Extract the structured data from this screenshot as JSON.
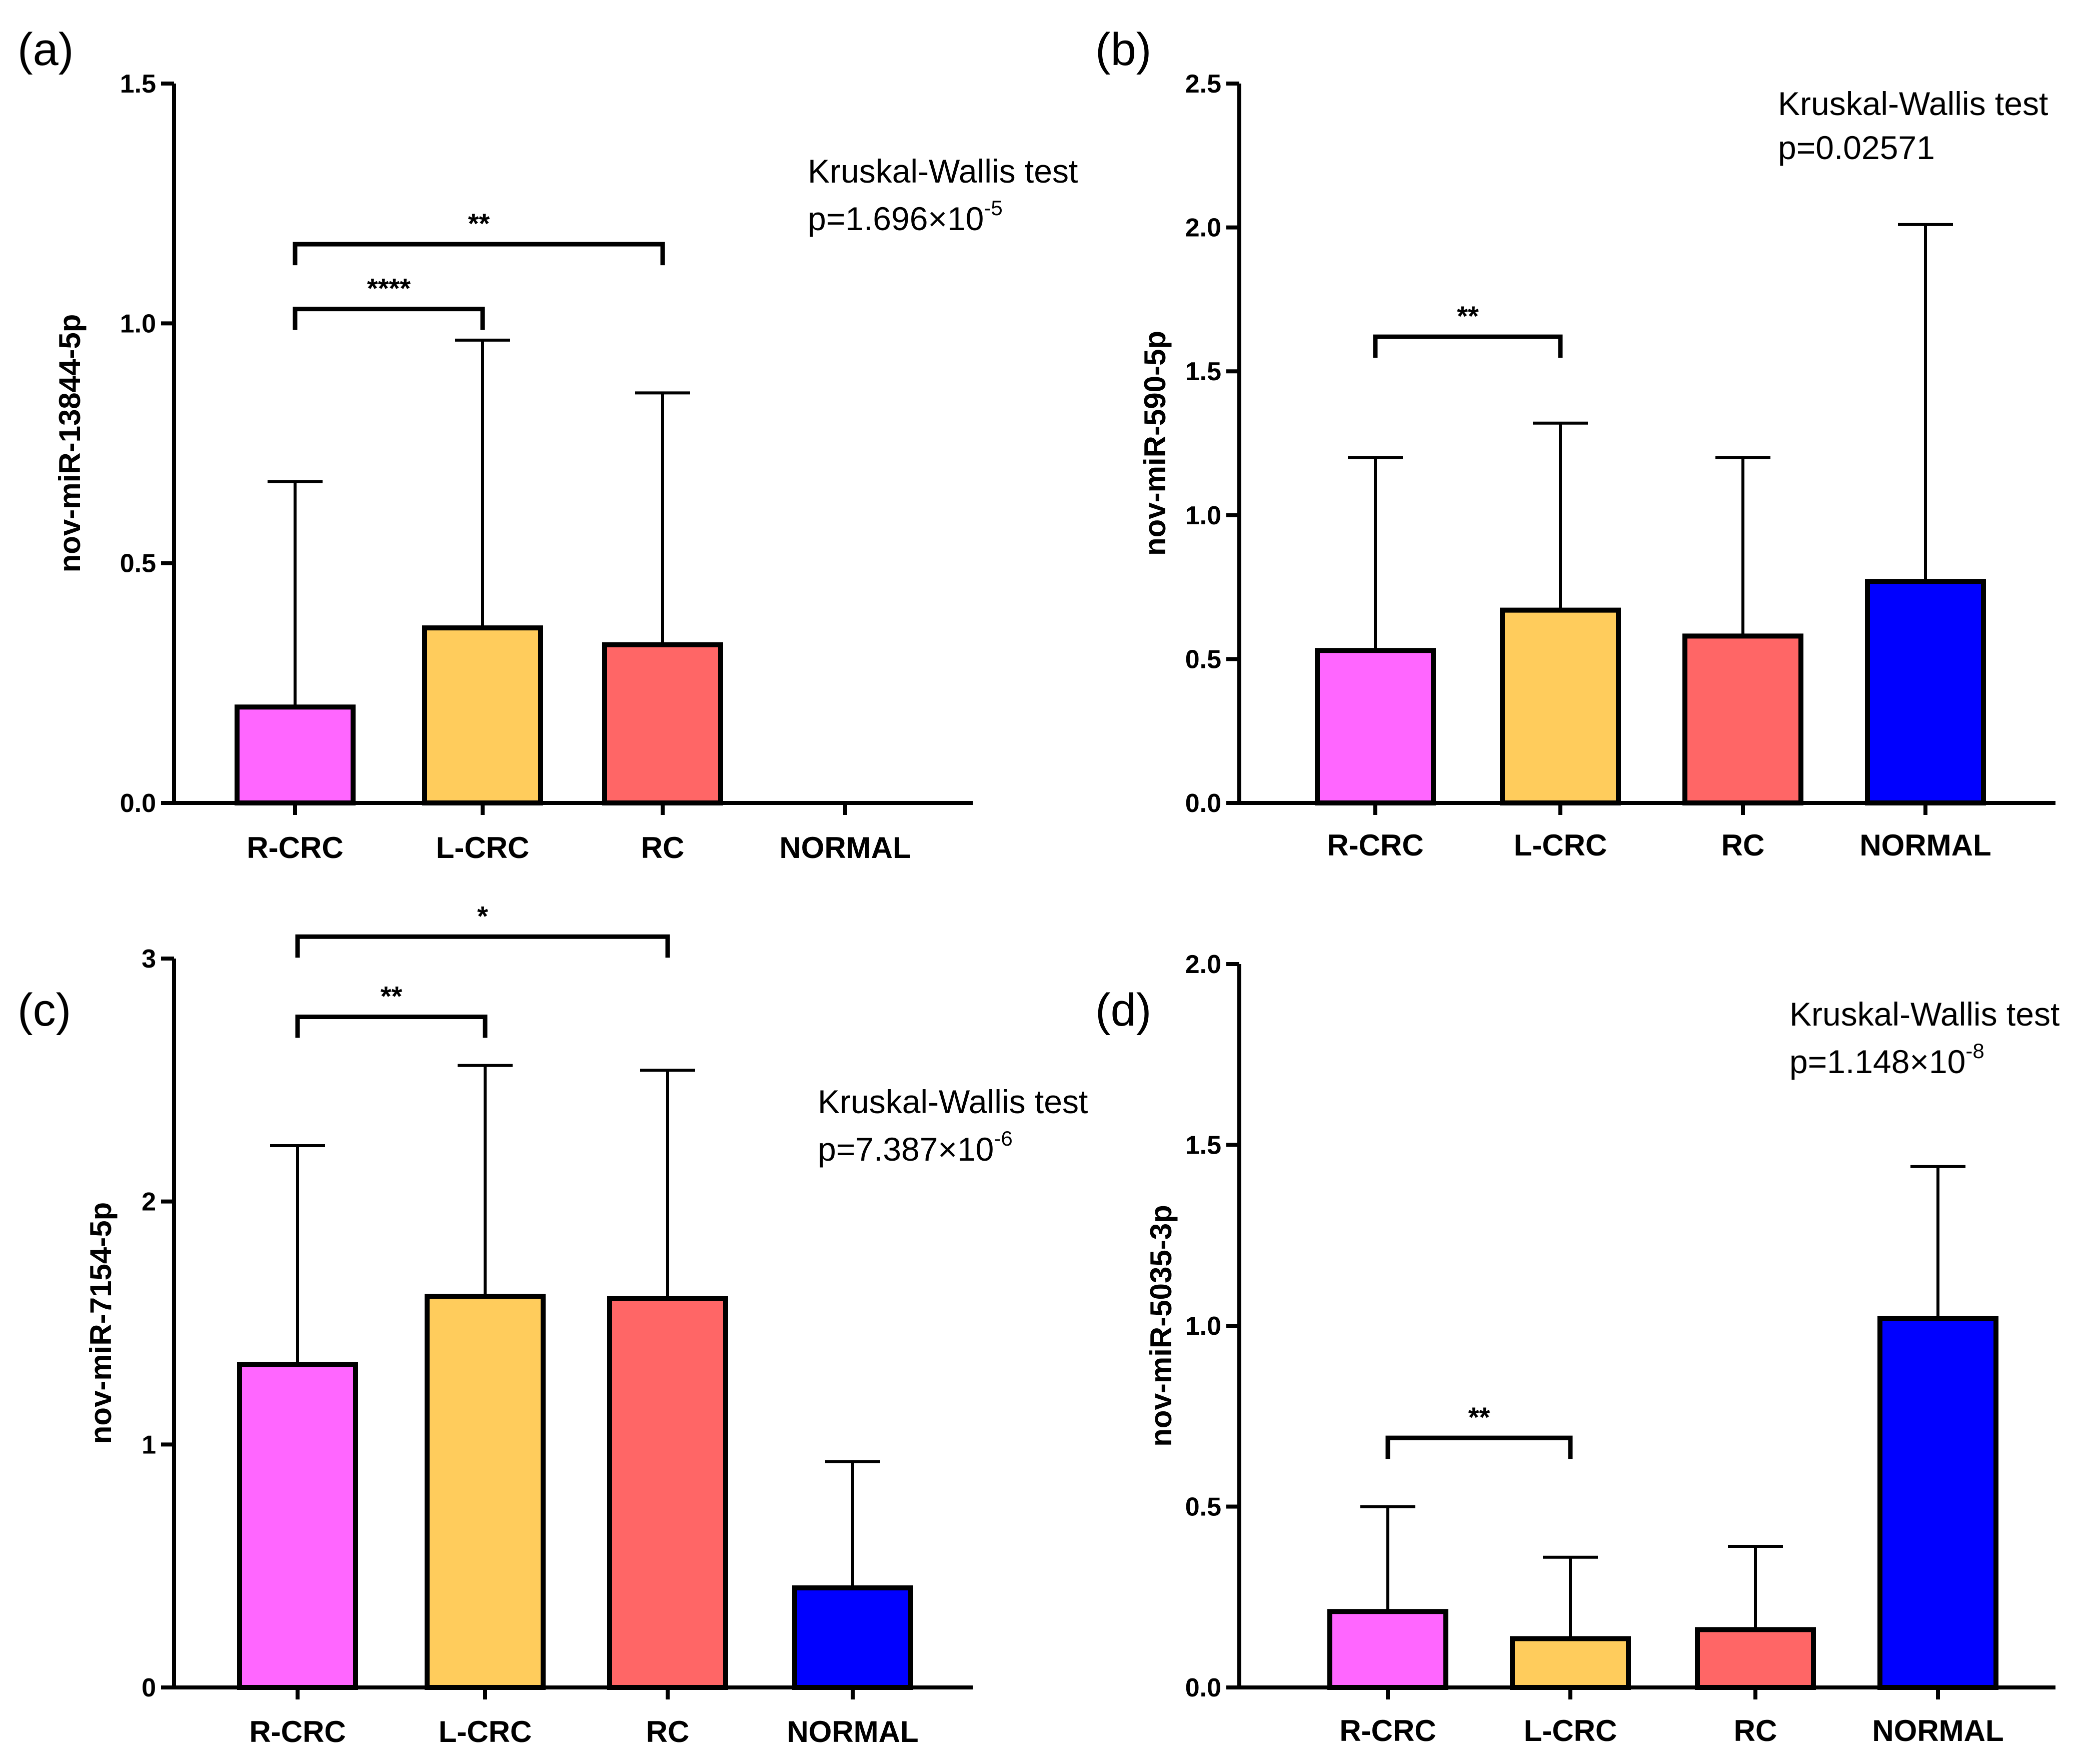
{
  "colors": {
    "R-CRC": "#ff66ff",
    "L-CRC": "#ffcc5c",
    "RC": "#ff6666",
    "NORMAL": "#0000ff"
  },
  "chart_data": [
    {
      "type": "bar",
      "panel": "(a)",
      "ylabel": "nov-miR-13844-5p",
      "categories": [
        "R-CRC",
        "L-CRC",
        "RC",
        "NORMAL"
      ],
      "values": [
        0.2,
        0.365,
        0.33,
        0.0
      ],
      "errors_upper": [
        0.67,
        0.965,
        0.855,
        null
      ],
      "ylim": [
        0,
        1.5
      ],
      "yticks": [
        0,
        0.5,
        1.0,
        1.5
      ],
      "ytick_labels": [
        "0.0",
        "0.5",
        "1.0",
        "1.5"
      ],
      "test_name": "Kruskal-Wallis test",
      "p_base": "p=1.696×10",
      "p_exp": "-5",
      "brackets": [
        {
          "from": 0,
          "to": 1,
          "label": "****",
          "y": 1.03
        },
        {
          "from": 0,
          "to": 2,
          "label": "**",
          "y": 1.165
        }
      ]
    },
    {
      "type": "bar",
      "panel": "(b)",
      "ylabel": "nov-miR-590-5p",
      "categories": [
        "R-CRC",
        "L-CRC",
        "RC",
        "NORMAL"
      ],
      "values": [
        0.53,
        0.67,
        0.58,
        0.77
      ],
      "errors_upper": [
        1.2,
        1.32,
        1.2,
        2.01
      ],
      "ylim": [
        0,
        2.5
      ],
      "yticks": [
        0,
        0.5,
        1.0,
        1.5,
        2.0,
        2.5
      ],
      "ytick_labels": [
        "0.0",
        "0.5",
        "1.0",
        "1.5",
        "2.0",
        "2.5"
      ],
      "test_name": "Kruskal-Wallis test",
      "p_base": "p=0.02571",
      "p_exp": "",
      "brackets": [
        {
          "from": 0,
          "to": 1,
          "label": "**",
          "y": 1.62
        }
      ]
    },
    {
      "type": "bar",
      "panel": "(c)",
      "ylabel": "nov-miR-7154-5p",
      "categories": [
        "R-CRC",
        "L-CRC",
        "RC",
        "NORMAL"
      ],
      "values": [
        1.33,
        1.61,
        1.6,
        0.41
      ],
      "errors_upper": [
        2.23,
        2.56,
        2.54,
        0.93
      ],
      "ylim": [
        0,
        3
      ],
      "yticks": [
        0,
        1,
        2,
        3
      ],
      "ytick_labels": [
        "0",
        "1",
        "2",
        "3"
      ],
      "test_name": "Kruskal-Wallis test",
      "p_base": "p=7.387×10",
      "p_exp": "-6",
      "brackets": [
        {
          "from": 0,
          "to": 1,
          "label": "**",
          "y": 2.76
        },
        {
          "from": 0,
          "to": 2,
          "label": "*",
          "y": 3.09
        }
      ]
    },
    {
      "type": "bar",
      "panel": "(d)",
      "ylabel": "nov-miR-5035-3p",
      "categories": [
        "R-CRC",
        "L-CRC",
        "RC",
        "NORMAL"
      ],
      "values": [
        0.21,
        0.135,
        0.16,
        1.02
      ],
      "errors_upper": [
        0.5,
        0.36,
        0.39,
        1.44
      ],
      "ylim": [
        0,
        2.0
      ],
      "yticks": [
        0,
        0.5,
        1.0,
        1.5,
        2.0
      ],
      "ytick_labels": [
        "0.0",
        "0.5",
        "1.0",
        "1.5",
        "2.0"
      ],
      "test_name": "Kruskal-Wallis test",
      "p_base": "p=1.148×10",
      "p_exp": "-8",
      "brackets": [
        {
          "from": 0,
          "to": 1,
          "label": "**",
          "y": 0.69
        }
      ]
    }
  ]
}
